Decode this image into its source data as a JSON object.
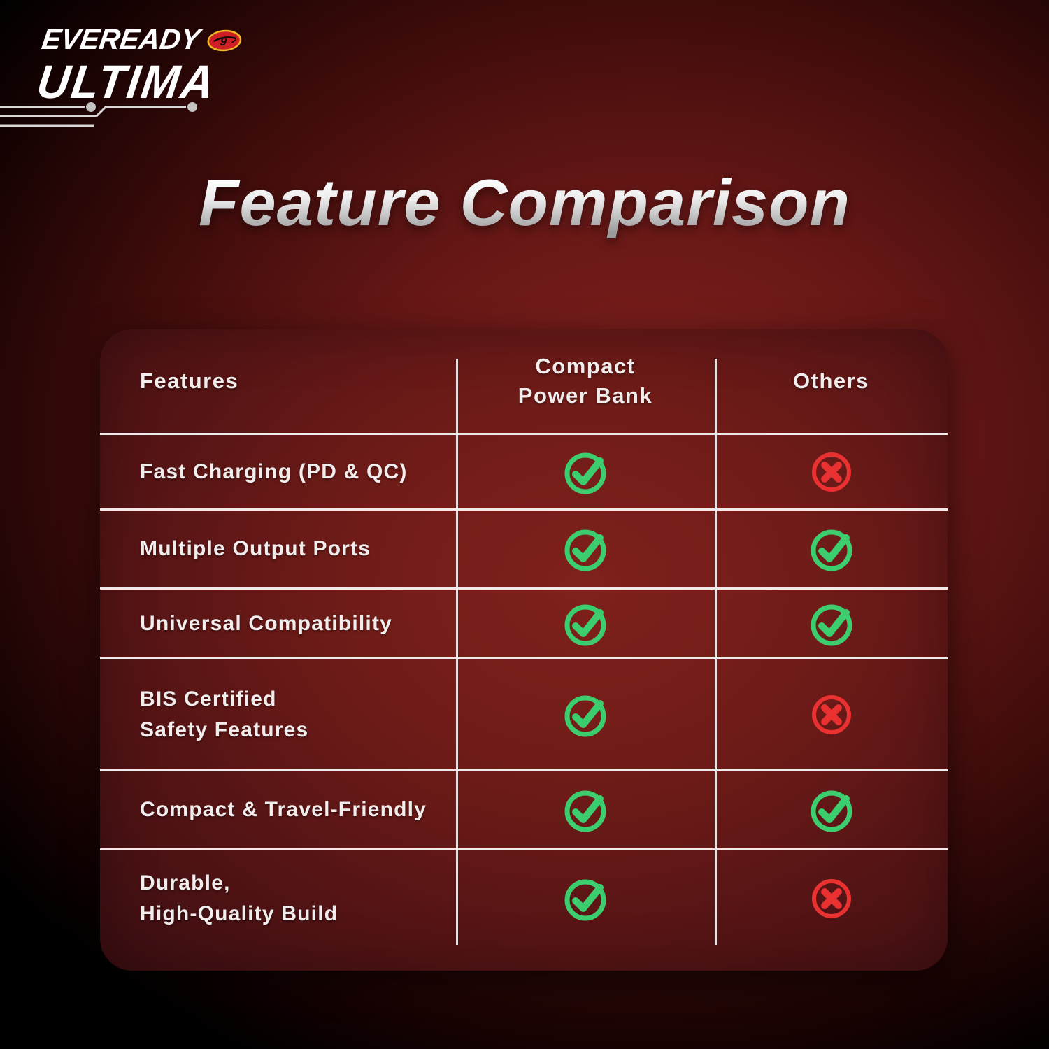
{
  "brand": {
    "line1": "EVEREADY",
    "line2": "ULTIMA",
    "badge_icon": "eveready-cat-nine-badge"
  },
  "title": "Feature Comparison",
  "table": {
    "header": {
      "features": "Features",
      "product_line1": "Compact",
      "product_line2": "Power Bank",
      "others": "Others"
    },
    "rows": [
      {
        "label": [
          "Fast Charging (PD & QC)"
        ],
        "compact_power_bank": "yes",
        "others": "no"
      },
      {
        "label": [
          "Multiple Output Ports"
        ],
        "compact_power_bank": "yes",
        "others": "yes"
      },
      {
        "label": [
          "Universal Compatibility"
        ],
        "compact_power_bank": "yes",
        "others": "yes"
      },
      {
        "label": [
          "BIS Certified",
          "Safety Features"
        ],
        "compact_power_bank": "yes",
        "others": "no"
      },
      {
        "label": [
          "Compact & Travel-Friendly"
        ],
        "compact_power_bank": "yes",
        "others": "yes"
      },
      {
        "label": [
          "Durable,",
          "High-Quality Build"
        ],
        "compact_power_bank": "yes",
        "others": "no"
      }
    ]
  },
  "icons": {
    "yes": "check-circle-icon",
    "no": "cross-circle-icon"
  },
  "colors": {
    "check_green": "#3bcd6e",
    "cross_red": "#e93131",
    "line": "#f1e9e9",
    "text": "#f2eded",
    "card_red": "#701c18",
    "badge_red": "#cf1f26",
    "badge_gold": "#f0b71f"
  },
  "chart_data": {
    "type": "table",
    "title": "Feature Comparison",
    "columns": [
      "Features",
      "Compact Power Bank",
      "Others"
    ],
    "rows": [
      [
        "Fast Charging (PD & QC)",
        "yes",
        "no"
      ],
      [
        "Multiple Output Ports",
        "yes",
        "yes"
      ],
      [
        "Universal Compatibility",
        "yes",
        "yes"
      ],
      [
        "BIS Certified Safety Features",
        "yes",
        "no"
      ],
      [
        "Compact & Travel-Friendly",
        "yes",
        "yes"
      ],
      [
        "Durable, High-Quality Build",
        "yes",
        "no"
      ]
    ],
    "legend": {
      "yes": "green check circle",
      "no": "red cross circle"
    }
  }
}
